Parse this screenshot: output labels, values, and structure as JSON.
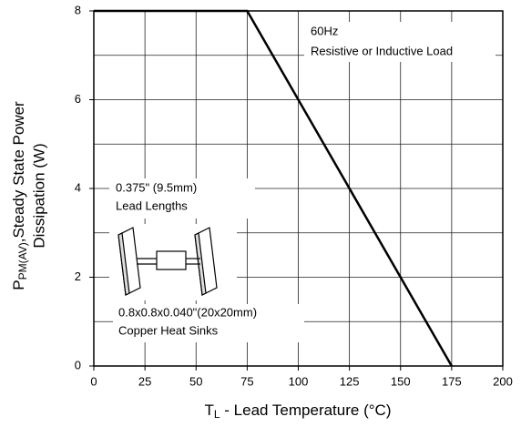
{
  "chart_data": {
    "type": "line",
    "x": [
      0,
      75,
      175
    ],
    "values": [
      8,
      8,
      0
    ],
    "color": "#000000",
    "xlim": [
      0,
      200
    ],
    "xticks": [
      0,
      25,
      50,
      75,
      100,
      125,
      150,
      175,
      200
    ],
    "ylim": [
      0,
      8
    ],
    "yticks": [
      0,
      2,
      4,
      6,
      8
    ],
    "y_minor_ticks": [
      1,
      3,
      5,
      7
    ],
    "grid": true,
    "x_label": {
      "main": "T",
      "sub": "L",
      "rest": " - Lead Temperature (°C)"
    },
    "y_label": {
      "main": "P",
      "sub": "PM(AV)",
      "rest": ",Steady State Power",
      "line2": "Dissipation (W)"
    },
    "annotations": [
      "60Hz",
      "Resistive or Inductive Load",
      "0.375\" (9.5mm)",
      "Lead Lengths",
      "0.8x0.8x0.040\"(20x20mm)",
      "Copper Heat Sinks"
    ]
  }
}
